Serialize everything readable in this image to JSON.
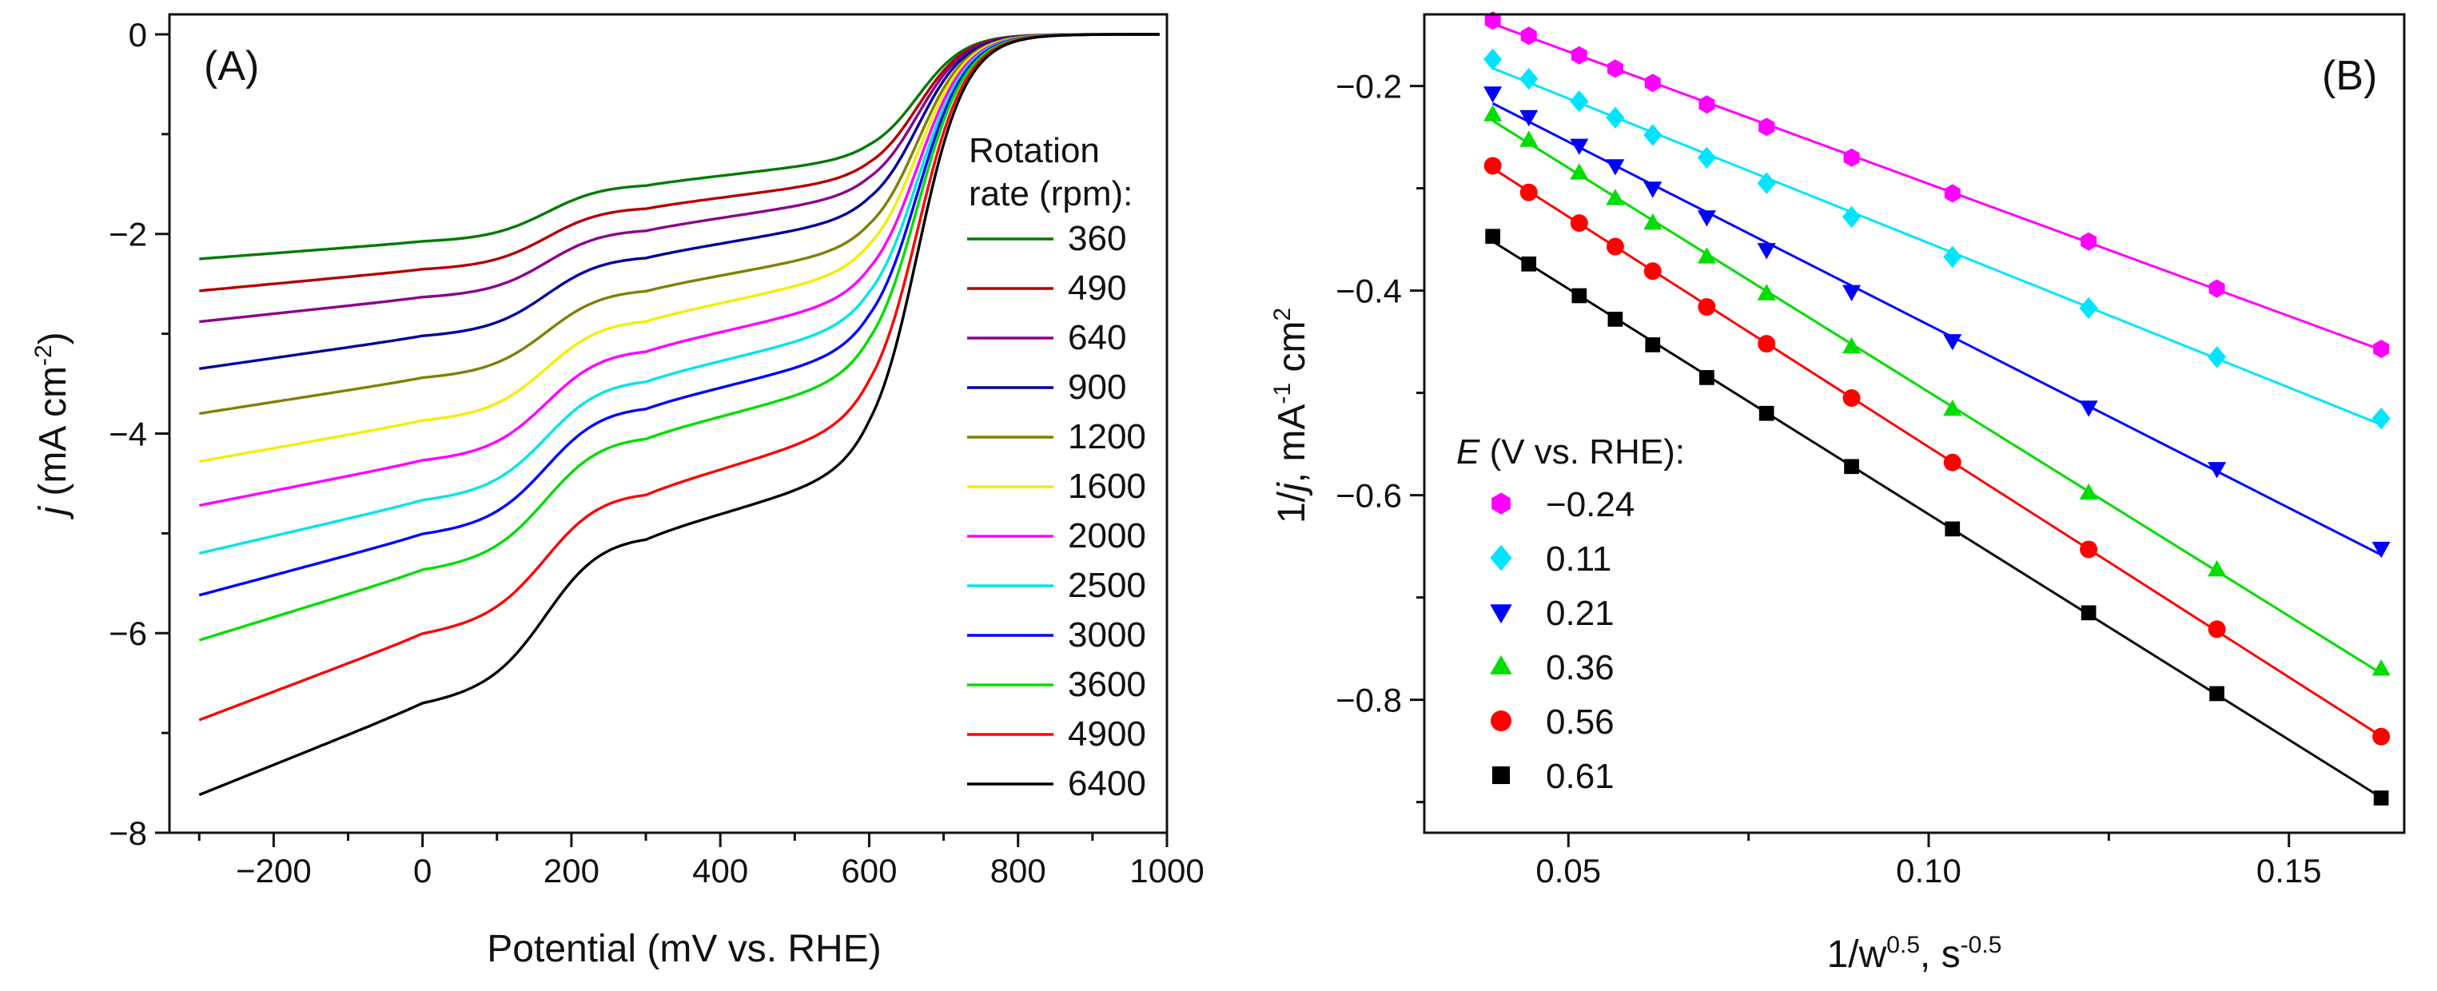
{
  "chart_data": [
    {
      "type": "line",
      "panel_label": "(A)",
      "xlabel": "Potential (mV vs. RHE)",
      "ylabel": {
        "italic": "j",
        "rest": " (mA cm",
        "sup": "-2",
        "close": ")"
      },
      "xlim": [
        -340,
        1000
      ],
      "ylim": [
        -8,
        0.2
      ],
      "xticks": [
        -200,
        0,
        200,
        400,
        600,
        800,
        1000
      ],
      "xtick_labels": [
        "−200",
        "0",
        "200",
        "400",
        "600",
        "800",
        "1000"
      ],
      "yticks": [
        0,
        -2,
        -4,
        -6,
        -8
      ],
      "ytick_labels": [
        "0",
        "−2",
        "−4",
        "−6",
        "−8"
      ],
      "legend_title": [
        "Rotation",
        "rate (rpm):"
      ],
      "legend_position": "right",
      "series": [
        {
          "name": "360",
          "color": "#007a00",
          "limiting": [
            -2.25,
            -2.08,
            -1.5,
            -1.25
          ]
        },
        {
          "name": "490",
          "color": "#b30000",
          "limiting": [
            -2.57,
            -2.36,
            -1.73,
            -1.45
          ]
        },
        {
          "name": "640",
          "color": "#8b008b",
          "limiting": [
            -2.88,
            -2.64,
            -1.95,
            -1.62
          ]
        },
        {
          "name": "900",
          "color": "#000099",
          "limiting": [
            -3.35,
            -3.03,
            -2.22,
            -1.85
          ]
        },
        {
          "name": "1200",
          "color": "#808000",
          "limiting": [
            -3.8,
            -3.45,
            -2.55,
            -2.15
          ]
        },
        {
          "name": "1600",
          "color": "#f0f000",
          "limiting": [
            -4.28,
            -3.88,
            -2.85,
            -2.38
          ]
        },
        {
          "name": "2000",
          "color": "#ff00ff",
          "limiting": [
            -4.72,
            -4.28,
            -3.15,
            -2.65
          ]
        },
        {
          "name": "2500",
          "color": "#00e5e5",
          "limiting": [
            -5.2,
            -4.68,
            -3.45,
            -2.92
          ]
        },
        {
          "name": "3000",
          "color": "#0000ff",
          "limiting": [
            -5.62,
            -5.02,
            -3.72,
            -3.18
          ]
        },
        {
          "name": "3600",
          "color": "#00dd00",
          "limiting": [
            -6.07,
            -5.38,
            -4.02,
            -3.45
          ]
        },
        {
          "name": "4900",
          "color": "#ff0000",
          "limiting": [
            -6.87,
            -6.02,
            -4.58,
            -3.92
          ]
        },
        {
          "name": "6400",
          "color": "#000000",
          "limiting": [
            -7.62,
            -6.72,
            -5.02,
            -4.38
          ]
        }
      ]
    },
    {
      "type": "scatter",
      "panel_label": "(B)",
      "xlabel": {
        "pre": "1/w",
        "sup1": "0.5",
        "mid": ", s",
        "sup2": "-0.5"
      },
      "ylabel": {
        "pre": "1/",
        "italic": "j",
        "mid": ", mA",
        "sup1": "-1",
        "mid2": " cm",
        "sup2": "2"
      },
      "xlim": [
        0.03,
        0.166
      ],
      "ylim": [
        -0.93,
        -0.13
      ],
      "xticks": [
        0.05,
        0.1,
        0.15
      ],
      "xtick_labels": [
        "0.05",
        "0.10",
        "0.15"
      ],
      "yticks": [
        -0.2,
        -0.4,
        -0.6,
        -0.8
      ],
      "ytick_labels": [
        "−0.2",
        "−0.4",
        "−0.6",
        "−0.8"
      ],
      "x": [
        0.0395,
        0.0445,
        0.0515,
        0.0565,
        0.0617,
        0.0692,
        0.0775,
        0.0893,
        0.1033,
        0.1222,
        0.14,
        0.1628
      ],
      "legend_title": {
        "italic": "E",
        "rest": " (V vs. RHE):"
      },
      "legend_position": "left",
      "series": [
        {
          "name": "−0.24",
          "color": "#ff00ff",
          "marker": "hexagon",
          "values": [
            -0.136,
            -0.151,
            -0.17,
            -0.183,
            -0.197,
            -0.218,
            -0.24,
            -0.27,
            -0.305,
            -0.352,
            -0.398,
            -0.457
          ]
        },
        {
          "name": "0.11",
          "color": "#00e5ff",
          "marker": "diamond",
          "values": [
            -0.174,
            -0.193,
            -0.215,
            -0.231,
            -0.248,
            -0.27,
            -0.295,
            -0.328,
            -0.367,
            -0.417,
            -0.465,
            -0.525
          ]
        },
        {
          "name": "0.21",
          "color": "#0000ff",
          "marker": "tri-down",
          "values": [
            -0.207,
            -0.23,
            -0.258,
            -0.278,
            -0.3,
            -0.328,
            -0.36,
            -0.401,
            -0.449,
            -0.514,
            -0.574,
            -0.652
          ]
        },
        {
          "name": "0.36",
          "color": "#00dd00",
          "marker": "tri-up",
          "values": [
            -0.228,
            -0.253,
            -0.285,
            -0.31,
            -0.334,
            -0.367,
            -0.403,
            -0.455,
            -0.516,
            -0.598,
            -0.673,
            -0.77
          ]
        },
        {
          "name": "0.56",
          "color": "#ff0000",
          "marker": "circle",
          "values": [
            -0.278,
            -0.304,
            -0.334,
            -0.357,
            -0.381,
            -0.416,
            -0.452,
            -0.505,
            -0.568,
            -0.653,
            -0.731,
            -0.836
          ]
        },
        {
          "name": "0.61",
          "color": "#000000",
          "marker": "square",
          "values": [
            -0.347,
            -0.374,
            -0.405,
            -0.428,
            -0.453,
            -0.485,
            -0.52,
            -0.572,
            -0.633,
            -0.715,
            -0.794,
            -0.896
          ]
        }
      ]
    }
  ]
}
